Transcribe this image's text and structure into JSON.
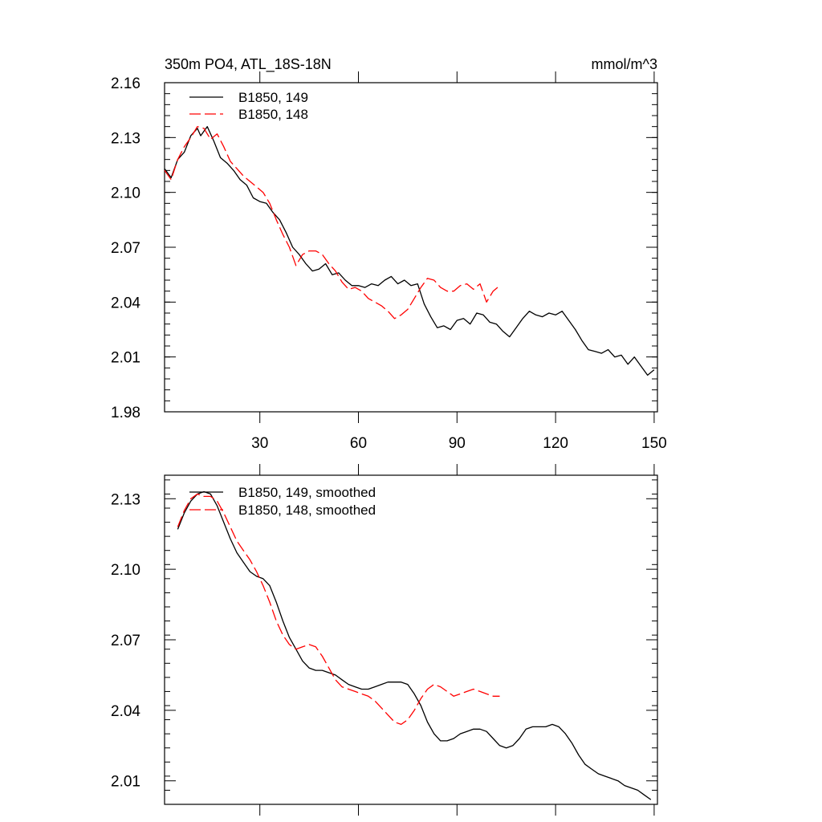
{
  "chart_data": [
    {
      "type": "line",
      "title": "350m PO4, ATL_18S-18N",
      "units_label": "mmol/m^3",
      "xlim": [
        1,
        151
      ],
      "ylim": [
        1.98,
        2.16
      ],
      "xticks": [
        30,
        60,
        90,
        120,
        150
      ],
      "xtick_labels": [
        "30",
        "60",
        "90",
        "120",
        "150"
      ],
      "yticks": [
        1.98,
        2.01,
        2.04,
        2.07,
        2.1,
        2.13,
        2.16
      ],
      "ytick_labels": [
        "1.98",
        "2.01",
        "2.04",
        "2.07",
        "2.10",
        "2.13",
        "2.16"
      ],
      "legend_position": "top-left",
      "series": [
        {
          "name": "B1850, 149",
          "color": "#000000",
          "dash": "solid",
          "points": [
            [
              1,
              2.113
            ],
            [
              3,
              2.108
            ],
            [
              5,
              2.118
            ],
            [
              7,
              2.122
            ],
            [
              9,
              2.131
            ],
            [
              11,
              2.135
            ],
            [
              12,
              2.131
            ],
            [
              14,
              2.136
            ],
            [
              16,
              2.128
            ],
            [
              18,
              2.119
            ],
            [
              20,
              2.116
            ],
            [
              22,
              2.112
            ],
            [
              24,
              2.107
            ],
            [
              26,
              2.104
            ],
            [
              28,
              2.097
            ],
            [
              30,
              2.095
            ],
            [
              32,
              2.094
            ],
            [
              34,
              2.089
            ],
            [
              36,
              2.085
            ],
            [
              38,
              2.078
            ],
            [
              40,
              2.07
            ],
            [
              42,
              2.066
            ],
            [
              44,
              2.061
            ],
            [
              46,
              2.057
            ],
            [
              48,
              2.058
            ],
            [
              50,
              2.061
            ],
            [
              52,
              2.055
            ],
            [
              54,
              2.056
            ],
            [
              56,
              2.052
            ],
            [
              58,
              2.049
            ],
            [
              60,
              2.049
            ],
            [
              62,
              2.048
            ],
            [
              64,
              2.05
            ],
            [
              66,
              2.049
            ],
            [
              68,
              2.052
            ],
            [
              70,
              2.054
            ],
            [
              72,
              2.05
            ],
            [
              74,
              2.052
            ],
            [
              76,
              2.049
            ],
            [
              78,
              2.05
            ],
            [
              80,
              2.039
            ],
            [
              82,
              2.032
            ],
            [
              84,
              2.026
            ],
            [
              86,
              2.027
            ],
            [
              88,
              2.025
            ],
            [
              90,
              2.03
            ],
            [
              92,
              2.031
            ],
            [
              94,
              2.028
            ],
            [
              96,
              2.034
            ],
            [
              98,
              2.033
            ],
            [
              100,
              2.029
            ],
            [
              102,
              2.028
            ],
            [
              104,
              2.024
            ],
            [
              106,
              2.021
            ],
            [
              108,
              2.026
            ],
            [
              110,
              2.031
            ],
            [
              112,
              2.035
            ],
            [
              114,
              2.033
            ],
            [
              116,
              2.032
            ],
            [
              118,
              2.034
            ],
            [
              120,
              2.033
            ],
            [
              122,
              2.035
            ],
            [
              124,
              2.03
            ],
            [
              126,
              2.025
            ],
            [
              128,
              2.019
            ],
            [
              130,
              2.014
            ],
            [
              132,
              2.013
            ],
            [
              134,
              2.012
            ],
            [
              136,
              2.014
            ],
            [
              138,
              2.01
            ],
            [
              140,
              2.011
            ],
            [
              142,
              2.006
            ],
            [
              144,
              2.01
            ],
            [
              146,
              2.005
            ],
            [
              148,
              2.0
            ],
            [
              150,
              2.003
            ]
          ]
        },
        {
          "name": "B1850, 148",
          "color": "#ff0000",
          "dash": "dashed",
          "points": [
            [
              1,
              2.112
            ],
            [
              3,
              2.107
            ],
            [
              5,
              2.118
            ],
            [
              7,
              2.125
            ],
            [
              9,
              2.13
            ],
            [
              11,
              2.136
            ],
            [
              13,
              2.135
            ],
            [
              15,
              2.129
            ],
            [
              17,
              2.132
            ],
            [
              19,
              2.125
            ],
            [
              21,
              2.117
            ],
            [
              23,
              2.113
            ],
            [
              25,
              2.109
            ],
            [
              27,
              2.106
            ],
            [
              29,
              2.103
            ],
            [
              31,
              2.1
            ],
            [
              33,
              2.094
            ],
            [
              35,
              2.085
            ],
            [
              37,
              2.077
            ],
            [
              39,
              2.07
            ],
            [
              41,
              2.06
            ],
            [
              43,
              2.066
            ],
            [
              45,
              2.068
            ],
            [
              47,
              2.068
            ],
            [
              49,
              2.066
            ],
            [
              51,
              2.061
            ],
            [
              53,
              2.057
            ],
            [
              55,
              2.051
            ],
            [
              57,
              2.047
            ],
            [
              59,
              2.048
            ],
            [
              61,
              2.046
            ],
            [
              63,
              2.042
            ],
            [
              65,
              2.04
            ],
            [
              67,
              2.038
            ],
            [
              69,
              2.035
            ],
            [
              71,
              2.031
            ],
            [
              73,
              2.033
            ],
            [
              75,
              2.036
            ],
            [
              77,
              2.042
            ],
            [
              79,
              2.048
            ],
            [
              81,
              2.053
            ],
            [
              83,
              2.052
            ],
            [
              85,
              2.048
            ],
            [
              87,
              2.046
            ],
            [
              89,
              2.046
            ],
            [
              91,
              2.049
            ],
            [
              93,
              2.05
            ],
            [
              95,
              2.047
            ],
            [
              97,
              2.05
            ],
            [
              99,
              2.04
            ],
            [
              101,
              2.046
            ],
            [
              103,
              2.049
            ]
          ]
        }
      ]
    },
    {
      "type": "line",
      "title": "",
      "xlim": [
        1,
        151
      ],
      "ylim": [
        2.0,
        2.14
      ],
      "xticks": [
        30,
        60,
        90,
        120,
        150
      ],
      "xtick_labels": [
        "",
        "",
        "",
        "",
        ""
      ],
      "yticks": [
        2.01,
        2.04,
        2.07,
        2.1,
        2.13
      ],
      "ytick_labels": [
        "2.01",
        "2.04",
        "2.07",
        "2.10",
        "2.13"
      ],
      "legend_position": "top-left",
      "series": [
        {
          "name": "B1850, 149, smoothed",
          "color": "#000000",
          "dash": "solid",
          "points": [
            [
              5,
              2.117
            ],
            [
              7,
              2.124
            ],
            [
              9,
              2.129
            ],
            [
              11,
              2.132
            ],
            [
              13,
              2.133
            ],
            [
              15,
              2.132
            ],
            [
              17,
              2.127
            ],
            [
              19,
              2.12
            ],
            [
              21,
              2.113
            ],
            [
              23,
              2.107
            ],
            [
              25,
              2.103
            ],
            [
              27,
              2.099
            ],
            [
              29,
              2.097
            ],
            [
              31,
              2.096
            ],
            [
              33,
              2.093
            ],
            [
              35,
              2.086
            ],
            [
              37,
              2.078
            ],
            [
              39,
              2.071
            ],
            [
              41,
              2.066
            ],
            [
              43,
              2.061
            ],
            [
              45,
              2.058
            ],
            [
              47,
              2.057
            ],
            [
              49,
              2.057
            ],
            [
              51,
              2.056
            ],
            [
              53,
              2.055
            ],
            [
              55,
              2.053
            ],
            [
              57,
              2.051
            ],
            [
              59,
              2.05
            ],
            [
              61,
              2.049
            ],
            [
              63,
              2.049
            ],
            [
              65,
              2.05
            ],
            [
              67,
              2.051
            ],
            [
              69,
              2.052
            ],
            [
              71,
              2.052
            ],
            [
              73,
              2.052
            ],
            [
              75,
              2.051
            ],
            [
              77,
              2.047
            ],
            [
              79,
              2.042
            ],
            [
              81,
              2.035
            ],
            [
              83,
              2.03
            ],
            [
              85,
              2.027
            ],
            [
              87,
              2.027
            ],
            [
              89,
              2.028
            ],
            [
              91,
              2.03
            ],
            [
              93,
              2.031
            ],
            [
              95,
              2.032
            ],
            [
              97,
              2.032
            ],
            [
              99,
              2.031
            ],
            [
              101,
              2.028
            ],
            [
              103,
              2.025
            ],
            [
              105,
              2.024
            ],
            [
              107,
              2.025
            ],
            [
              109,
              2.028
            ],
            [
              111,
              2.032
            ],
            [
              113,
              2.033
            ],
            [
              115,
              2.033
            ],
            [
              117,
              2.033
            ],
            [
              119,
              2.034
            ],
            [
              121,
              2.033
            ],
            [
              123,
              2.03
            ],
            [
              125,
              2.026
            ],
            [
              127,
              2.021
            ],
            [
              129,
              2.017
            ],
            [
              131,
              2.015
            ],
            [
              133,
              2.013
            ],
            [
              135,
              2.012
            ],
            [
              137,
              2.011
            ],
            [
              139,
              2.01
            ],
            [
              141,
              2.008
            ],
            [
              143,
              2.007
            ],
            [
              145,
              2.006
            ],
            [
              147,
              2.004
            ],
            [
              149,
              2.002
            ]
          ]
        },
        {
          "name": "B1850, 148, smoothed",
          "color": "#ff0000",
          "dash": "dashed",
          "points": [
            [
              5,
              2.118
            ],
            [
              7,
              2.125
            ],
            [
              9,
              2.13
            ],
            [
              11,
              2.132
            ],
            [
              13,
              2.131
            ],
            [
              15,
              2.131
            ],
            [
              17,
              2.129
            ],
            [
              19,
              2.124
            ],
            [
              21,
              2.118
            ],
            [
              23,
              2.112
            ],
            [
              25,
              2.108
            ],
            [
              27,
              2.104
            ],
            [
              29,
              2.099
            ],
            [
              31,
              2.093
            ],
            [
              33,
              2.086
            ],
            [
              35,
              2.078
            ],
            [
              37,
              2.072
            ],
            [
              39,
              2.068
            ],
            [
              41,
              2.066
            ],
            [
              43,
              2.067
            ],
            [
              45,
              2.068
            ],
            [
              47,
              2.067
            ],
            [
              49,
              2.063
            ],
            [
              51,
              2.058
            ],
            [
              53,
              2.053
            ],
            [
              55,
              2.05
            ],
            [
              57,
              2.049
            ],
            [
              59,
              2.048
            ],
            [
              61,
              2.047
            ],
            [
              63,
              2.046
            ],
            [
              65,
              2.044
            ],
            [
              67,
              2.041
            ],
            [
              69,
              2.038
            ],
            [
              71,
              2.035
            ],
            [
              73,
              2.034
            ],
            [
              75,
              2.036
            ],
            [
              77,
              2.04
            ],
            [
              79,
              2.045
            ],
            [
              81,
              2.049
            ],
            [
              83,
              2.051
            ],
            [
              85,
              2.05
            ],
            [
              87,
              2.048
            ],
            [
              89,
              2.046
            ],
            [
              91,
              2.047
            ],
            [
              93,
              2.048
            ],
            [
              95,
              2.049
            ],
            [
              97,
              2.048
            ],
            [
              99,
              2.047
            ],
            [
              101,
              2.046
            ],
            [
              103,
              2.046
            ]
          ]
        }
      ]
    }
  ]
}
